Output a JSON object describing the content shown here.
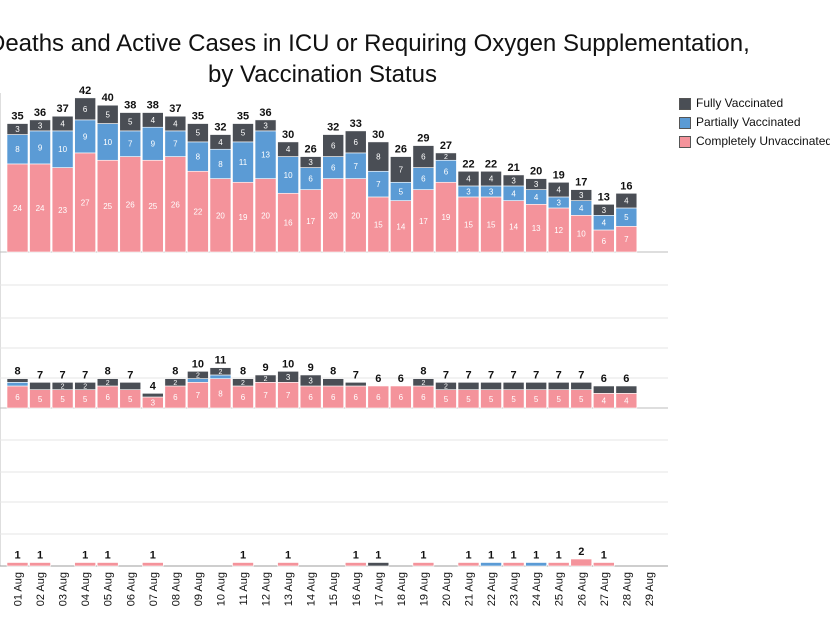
{
  "title_line1": "Deaths and Active Cases in ICU or Requiring Oxygen Supplementation,",
  "title_line2": "by Vaccination Status",
  "colors": {
    "fully": "#4a4e55",
    "partial": "#5b9bd5",
    "unvacc": "#f4939b",
    "grid": "#e6e6e6"
  },
  "legend": [
    {
      "key": "fully",
      "label": "Fully Vaccinated"
    },
    {
      "key": "partial",
      "label": "Partially Vaccinated"
    },
    {
      "key": "unvacc",
      "label": "Completely Unvaccinated"
    }
  ],
  "chart_data": [
    {
      "type": "bar",
      "stacked": true,
      "panel": "ICU or requiring oxygen (top)",
      "categories": [
        "01 Aug",
        "02 Aug",
        "03 Aug",
        "04 Aug",
        "05 Aug",
        "06 Aug",
        "07 Aug",
        "08 Aug",
        "09 Aug",
        "10 Aug",
        "11 Aug",
        "12 Aug",
        "13 Aug",
        "14 Aug",
        "15 Aug",
        "16 Aug",
        "17 Aug",
        "18 Aug",
        "19 Aug",
        "20 Aug",
        "21 Aug",
        "22 Aug",
        "23 Aug",
        "24 Aug",
        "25 Aug",
        "26 Aug",
        "27 Aug",
        "28 Aug"
      ],
      "totals": [
        35,
        36,
        37,
        42,
        40,
        38,
        38,
        37,
        35,
        32,
        35,
        36,
        30,
        26,
        32,
        33,
        30,
        26,
        29,
        27,
        22,
        22,
        21,
        20,
        19,
        17,
        13,
        16
      ],
      "series": [
        {
          "name": "Completely Unvaccinated",
          "key": "unvacc",
          "values": [
            24,
            24,
            23,
            27,
            25,
            26,
            25,
            26,
            22,
            20,
            19,
            20,
            16,
            17,
            20,
            20,
            15,
            14,
            17,
            19,
            15,
            15,
            14,
            13,
            12,
            10,
            6,
            7
          ]
        },
        {
          "name": "Partially Vaccinated",
          "key": "partial",
          "values": [
            8,
            9,
            10,
            9,
            10,
            7,
            9,
            7,
            8,
            8,
            11,
            13,
            10,
            6,
            6,
            7,
            7,
            5,
            6,
            6,
            3,
            3,
            4,
            4,
            3,
            4,
            4,
            5
          ]
        },
        {
          "name": "Fully Vaccinated",
          "key": "fully",
          "values": [
            3,
            3,
            4,
            6,
            5,
            5,
            4,
            4,
            5,
            4,
            5,
            3,
            4,
            3,
            6,
            6,
            8,
            7,
            6,
            2,
            4,
            4,
            3,
            3,
            4,
            3,
            3,
            4
          ]
        }
      ]
    },
    {
      "type": "bar",
      "stacked": true,
      "panel": "middle",
      "categories": [
        "01 Aug",
        "02 Aug",
        "03 Aug",
        "04 Aug",
        "05 Aug",
        "06 Aug",
        "07 Aug",
        "08 Aug",
        "09 Aug",
        "10 Aug",
        "11 Aug",
        "12 Aug",
        "13 Aug",
        "14 Aug",
        "15 Aug",
        "16 Aug",
        "17 Aug",
        "18 Aug",
        "19 Aug",
        "20 Aug",
        "21 Aug",
        "22 Aug",
        "23 Aug",
        "24 Aug",
        "25 Aug",
        "26 Aug",
        "27 Aug",
        "28 Aug"
      ],
      "totals": [
        8,
        7,
        7,
        7,
        8,
        7,
        4,
        8,
        10,
        11,
        8,
        9,
        10,
        9,
        8,
        7,
        6,
        6,
        8,
        7,
        7,
        7,
        7,
        7,
        7,
        7,
        6,
        6
      ],
      "series": [
        {
          "name": "Completely Unvaccinated",
          "key": "unvacc",
          "values": [
            6,
            5,
            5,
            5,
            6,
            5,
            3,
            6,
            7,
            8,
            6,
            7,
            7,
            6,
            6,
            6,
            6,
            6,
            6,
            5,
            5,
            5,
            5,
            5,
            5,
            5,
            4,
            4
          ]
        },
        {
          "name": "Partially Vaccinated",
          "key": "partial",
          "values": [
            1,
            0,
            0,
            0,
            0,
            0,
            0,
            0,
            1,
            1,
            0,
            0,
            0,
            0,
            0,
            0,
            0,
            0,
            0,
            0,
            0,
            0,
            0,
            0,
            0,
            0,
            0,
            0
          ]
        },
        {
          "name": "Fully Vaccinated",
          "key": "fully",
          "values": [
            1,
            2,
            2,
            2,
            2,
            2,
            1,
            2,
            2,
            2,
            2,
            2,
            3,
            3,
            2,
            1,
            0,
            0,
            2,
            2,
            2,
            2,
            2,
            2,
            2,
            2,
            2,
            2
          ]
        }
      ],
      "segment_labels": {
        "unvacc": [
          6,
          5,
          5,
          5,
          6,
          5,
          3,
          6,
          7,
          8,
          6,
          7,
          7,
          6,
          6,
          6,
          6,
          6,
          6,
          5,
          5,
          5,
          5,
          5,
          5,
          5,
          4,
          4
        ],
        "fully": [
          null,
          null,
          2,
          2,
          2,
          null,
          null,
          2,
          2,
          2,
          2,
          2,
          3,
          3,
          null,
          null,
          null,
          null,
          2,
          2,
          null,
          null,
          null,
          null,
          null,
          null,
          null,
          null
        ]
      }
    },
    {
      "type": "bar",
      "stacked": true,
      "panel": "deaths (bottom)",
      "categories": [
        "01 Aug",
        "02 Aug",
        "03 Aug",
        "04 Aug",
        "05 Aug",
        "06 Aug",
        "07 Aug",
        "08 Aug",
        "09 Aug",
        "10 Aug",
        "11 Aug",
        "12 Aug",
        "13 Aug",
        "14 Aug",
        "15 Aug",
        "16 Aug",
        "17 Aug",
        "18 Aug",
        "19 Aug",
        "20 Aug",
        "21 Aug",
        "22 Aug",
        "23 Aug",
        "24 Aug",
        "25 Aug",
        "26 Aug",
        "27 Aug",
        "28 Aug",
        "29 Aug"
      ],
      "totals": [
        1,
        1,
        null,
        1,
        1,
        null,
        1,
        null,
        null,
        null,
        1,
        null,
        1,
        null,
        null,
        1,
        1,
        null,
        1,
        null,
        1,
        1,
        1,
        1,
        1,
        2,
        1,
        null,
        null
      ],
      "series": [
        {
          "name": "Completely Unvaccinated",
          "key": "unvacc",
          "values": [
            1,
            1,
            0,
            1,
            1,
            0,
            1,
            0,
            0,
            0,
            1,
            0,
            1,
            0,
            0,
            1,
            0,
            0,
            1,
            0,
            1,
            0,
            1,
            0,
            1,
            2,
            1,
            0,
            0
          ]
        },
        {
          "name": "Partially Vaccinated",
          "key": "partial",
          "values": [
            0,
            0,
            0,
            0,
            0,
            0,
            0,
            0,
            0,
            0,
            0,
            0,
            0,
            0,
            0,
            0,
            0,
            0,
            0,
            0,
            0,
            1,
            0,
            1,
            0,
            0,
            0,
            0,
            0
          ]
        },
        {
          "name": "Fully Vaccinated",
          "key": "fully",
          "values": [
            0,
            0,
            0,
            0,
            0,
            0,
            0,
            0,
            0,
            0,
            0,
            0,
            0,
            0,
            0,
            0,
            1,
            0,
            0,
            0,
            0,
            0,
            0,
            0,
            0,
            0,
            0,
            0,
            0
          ]
        }
      ]
    }
  ]
}
